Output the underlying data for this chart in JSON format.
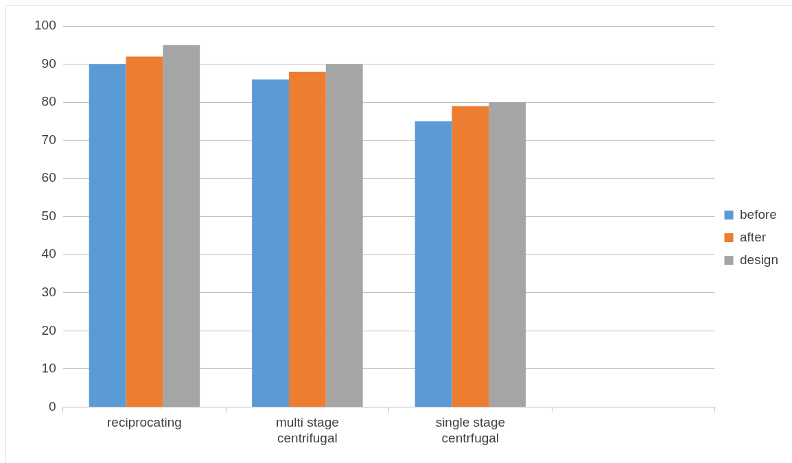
{
  "chart_data": {
    "type": "bar",
    "categories": [
      "reciprocating",
      "multi stage centrifugal",
      "single stage centrfugal",
      null
    ],
    "series": [
      {
        "name": "before",
        "color": "#5b9bd5",
        "values": [
          90,
          86,
          75,
          null
        ]
      },
      {
        "name": "after",
        "color": "#ed7d31",
        "values": [
          92,
          88,
          79,
          null
        ]
      },
      {
        "name": "design",
        "color": "#a5a5a5",
        "values": [
          95,
          90,
          80,
          null
        ]
      }
    ],
    "ylim": [
      0,
      100
    ],
    "yticks": [
      0,
      10,
      20,
      30,
      40,
      50,
      60,
      70,
      80,
      90,
      100
    ],
    "grid": "y",
    "legend": "right"
  }
}
